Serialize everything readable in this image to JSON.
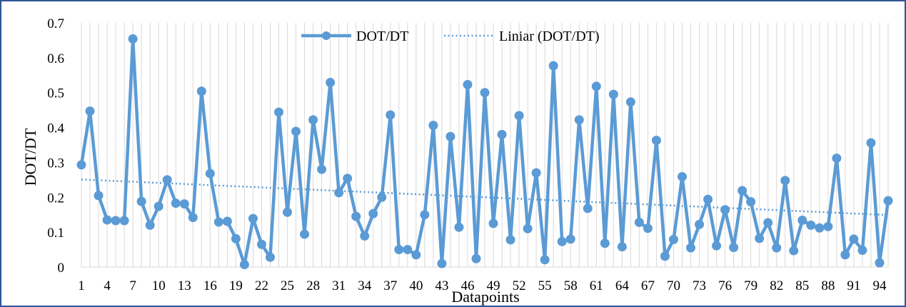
{
  "chart_data": {
    "type": "line",
    "title": "",
    "xlabel": "Datapoints",
    "ylabel": "DOT/DT",
    "ylim": [
      0,
      0.7
    ],
    "yticks": [
      "0",
      "0.1",
      "0.2",
      "0.3",
      "0.4",
      "0.5",
      "0.6",
      "0.7"
    ],
    "xticks": [
      "1",
      "4",
      "7",
      "10",
      "13",
      "16",
      "19",
      "22",
      "25",
      "28",
      "31",
      "34",
      "37",
      "40",
      "43",
      "46",
      "49",
      "52",
      "55",
      "58",
      "61",
      "64",
      "67",
      "70",
      "73",
      "76",
      "79",
      "82",
      "85",
      "88",
      "91",
      "94"
    ],
    "x_range": [
      1,
      95
    ],
    "grid": "vertical",
    "legend_position": "top-center",
    "colors": {
      "series": "#5b9bd5",
      "trend": "#5b9bd5"
    },
    "series": [
      {
        "name": "DOT/DT",
        "values": [
          0.293,
          0.447,
          0.205,
          0.135,
          0.133,
          0.133,
          0.654,
          0.188,
          0.12,
          0.174,
          0.25,
          0.183,
          0.181,
          0.142,
          0.504,
          0.268,
          0.129,
          0.131,
          0.081,
          0.007,
          0.139,
          0.065,
          0.028,
          0.444,
          0.157,
          0.389,
          0.094,
          0.422,
          0.28,
          0.529,
          0.213,
          0.254,
          0.145,
          0.089,
          0.153,
          0.2,
          0.436,
          0.05,
          0.05,
          0.035,
          0.15,
          0.406,
          0.01,
          0.374,
          0.114,
          0.523,
          0.024,
          0.5,
          0.125,
          0.38,
          0.078,
          0.434,
          0.11,
          0.27,
          0.021,
          0.577,
          0.073,
          0.08,
          0.422,
          0.168,
          0.518,
          0.068,
          0.495,
          0.058,
          0.473,
          0.128,
          0.111,
          0.363,
          0.031,
          0.079,
          0.259,
          0.055,
          0.122,
          0.194,
          0.061,
          0.164,
          0.056,
          0.219,
          0.187,
          0.082,
          0.127,
          0.055,
          0.248,
          0.047,
          0.134,
          0.12,
          0.112,
          0.116,
          0.312,
          0.035,
          0.08,
          0.048,
          0.356,
          0.012,
          0.19
        ]
      },
      {
        "name": "Liniar (DOT/DT)",
        "type": "trendline",
        "line_style": "dotted",
        "values_at_ends": [
          0.251,
          0.149
        ]
      }
    ]
  }
}
